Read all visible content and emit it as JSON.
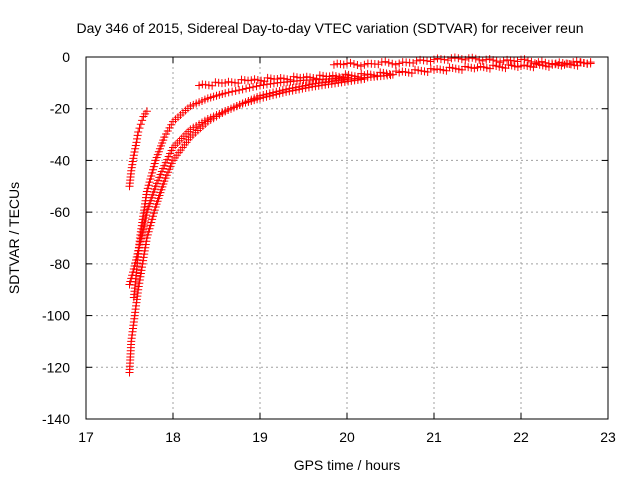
{
  "chart_data": {
    "type": "scatter",
    "title": "Day 346 of 2015, Sidereal Day-to-day VTEC variation (SDTVAR) for receiver reun",
    "xlabel": "GPS time / hours",
    "ylabel": "SDTVAR / TECUs",
    "xlim": [
      17,
      23
    ],
    "ylim": [
      -140,
      0
    ],
    "xticks": [
      17,
      18,
      19,
      20,
      21,
      22,
      23
    ],
    "yticks": [
      0,
      -20,
      -40,
      -60,
      -80,
      -100,
      -120,
      -140
    ],
    "grid": true,
    "marker": "+",
    "color": "#ff0000",
    "series": [
      {
        "x": [
          17.5,
          17.52,
          17.55,
          17.58,
          17.6,
          17.63,
          17.66,
          17.7
        ],
        "y": [
          -50,
          -44,
          -38,
          -33,
          -29,
          -26,
          -23,
          -21
        ]
      },
      {
        "x": [
          17.55,
          17.62,
          17.7,
          17.8,
          17.9,
          18.0,
          18.2,
          18.4,
          18.6,
          18.8,
          19.0,
          19.2,
          19.5,
          19.8,
          20.0
        ],
        "y": [
          -93,
          -70,
          -52,
          -40,
          -31,
          -25,
          -19,
          -16,
          -14,
          -12.5,
          -11,
          -10,
          -9,
          -8.5,
          -8
        ]
      },
      {
        "x": [
          17.5,
          17.52,
          17.56,
          17.6,
          17.65,
          17.7,
          17.8,
          17.9,
          18.0,
          18.2,
          18.4,
          18.6,
          18.8,
          19.0,
          19.3,
          19.6,
          19.9,
          20.2,
          20.5
        ],
        "y": [
          -122,
          -110,
          -100,
          -90,
          -80,
          -70,
          -58,
          -48,
          -40,
          -31,
          -25,
          -21,
          -18,
          -15,
          -12.5,
          -10.5,
          -9,
          -8,
          -7
        ]
      },
      {
        "x": [
          17.5,
          17.55,
          17.6,
          17.65,
          17.7,
          17.8,
          17.9,
          18.0,
          18.2,
          18.4,
          18.6,
          18.8,
          19.0,
          19.3,
          19.6,
          19.9,
          20.2
        ],
        "y": [
          -88,
          -82,
          -75,
          -68,
          -60,
          -50,
          -42,
          -35,
          -28,
          -24,
          -21,
          -18,
          -16,
          -13.5,
          -11.5,
          -10,
          -8.5
        ]
      },
      {
        "x": [
          18.3,
          18.6,
          18.9,
          19.2,
          19.5,
          19.8,
          20.2,
          20.6,
          21.0,
          21.5,
          22.0,
          22.5,
          22.8
        ],
        "y": [
          -11,
          -10,
          -9,
          -8.5,
          -8,
          -7.5,
          -7,
          -6,
          -5,
          -4,
          -3.5,
          -3,
          -2.5
        ]
      },
      {
        "x": [
          19.85,
          20.0,
          20.2,
          20.4,
          20.6,
          20.8,
          21.0,
          21.2,
          21.4,
          21.6,
          21.8,
          22.0,
          22.2,
          22.4,
          22.6,
          22.8
        ],
        "y": [
          -3,
          -2.5,
          -3,
          -2,
          -2.5,
          -1.5,
          -1,
          -0.5,
          -0.5,
          -1,
          -1.5,
          -1,
          -2,
          -2.5,
          -2,
          -2
        ]
      }
    ]
  }
}
